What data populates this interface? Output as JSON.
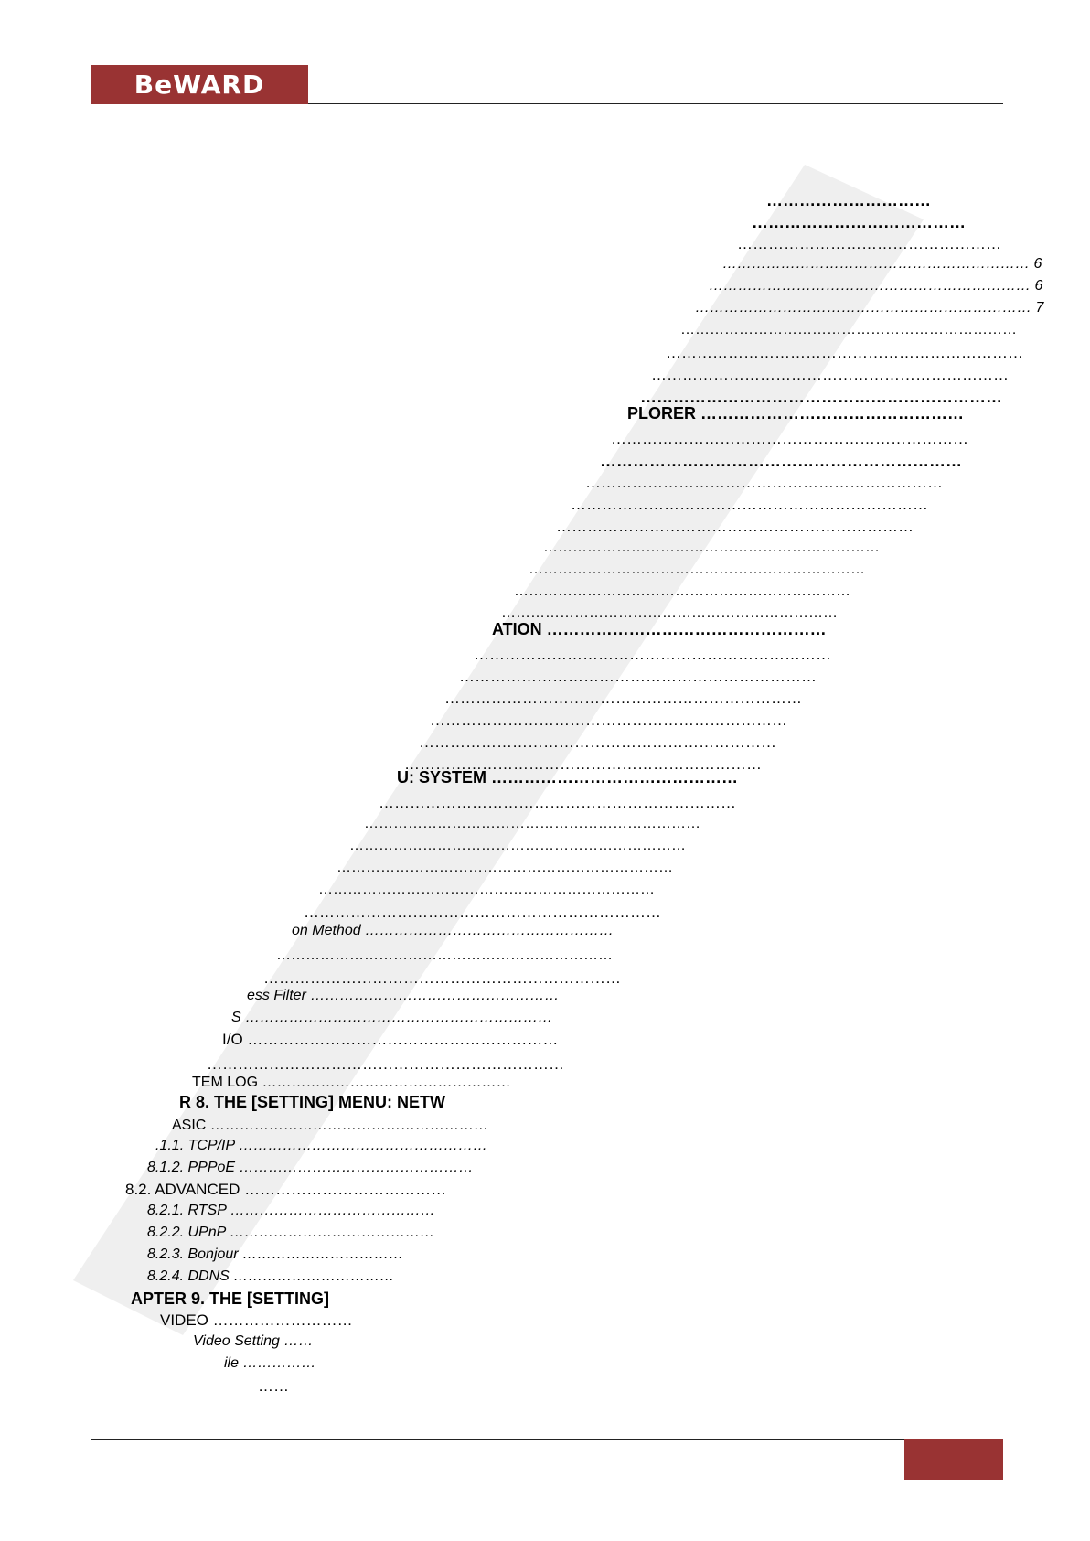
{
  "header": {
    "logo": "BeWARD"
  },
  "toc": [
    {
      "text": "…………………………",
      "page": ""
    },
    {
      "text": "…………………………………",
      "page": ""
    },
    {
      "text": "……………………………………………",
      "page": ""
    },
    {
      "text": "………………………………………………………",
      "page": "6"
    },
    {
      "text": "…………………………………………………………",
      "page": "6"
    },
    {
      "text": "……………………………………………………………",
      "page": "7"
    },
    {
      "text": "……………………………………………………………",
      "page": ""
    },
    {
      "text": "……………………………………………………………",
      "page": ""
    },
    {
      "text": "……………………………………………………………",
      "page": ""
    },
    {
      "text": "…………………………………………………………",
      "page": ""
    },
    {
      "text": "PLORER …………………………………………",
      "page": ""
    },
    {
      "text": "……………………………………………………………",
      "page": ""
    },
    {
      "text": "…………………………………………………………",
      "page": ""
    },
    {
      "text": "……………………………………………………………",
      "page": ""
    },
    {
      "text": "……………………………………………………………",
      "page": ""
    },
    {
      "text": "……………………………………………………………",
      "page": ""
    },
    {
      "text": "……………………………………………………………",
      "page": ""
    },
    {
      "text": "……………………………………………………………",
      "page": ""
    },
    {
      "text": "……………………………………………………………",
      "page": ""
    },
    {
      "text": "……………………………………………………………",
      "page": ""
    },
    {
      "text": "ATION ……………………………………………",
      "page": ""
    },
    {
      "text": "……………………………………………………………",
      "page": ""
    },
    {
      "text": "……………………………………………………………",
      "page": ""
    },
    {
      "text": "……………………………………………………………",
      "page": ""
    },
    {
      "text": "……………………………………………………………",
      "page": ""
    },
    {
      "text": "……………………………………………………………",
      "page": ""
    },
    {
      "text": "……………………………………………………………",
      "page": ""
    },
    {
      "text": "U: SYSTEM ………………………………………",
      "page": ""
    },
    {
      "text": "……………………………………………………………",
      "page": ""
    },
    {
      "text": "……………………………………………………………",
      "page": ""
    },
    {
      "text": "……………………………………………………………",
      "page": ""
    },
    {
      "text": "……………………………………………………………",
      "page": ""
    },
    {
      "text": "……………………………………………………………",
      "page": ""
    },
    {
      "text": "……………………………………………………………",
      "page": ""
    },
    {
      "text": "on Method ……………………………………………",
      "page": ""
    },
    {
      "text": "……………………………………………………………",
      "page": ""
    },
    {
      "text": "……………………………………………………………",
      "page": ""
    },
    {
      "text": "ess Filter ……………………………………………",
      "page": ""
    },
    {
      "text": "S ………………………………………………………",
      "page": ""
    },
    {
      "text": "I/O ……………………………………………………",
      "page": ""
    },
    {
      "text": "……………………………………………………………",
      "page": ""
    },
    {
      "text": "TEM LOG ……………………………………………",
      "page": ""
    },
    {
      "text": "R 8. THE [SETTING] MENU: NETW",
      "page": ""
    },
    {
      "text": "ASIC …………………………………………………",
      "page": ""
    },
    {
      "text": ".1.1. TCP/IP ……………………………………………",
      "page": ""
    },
    {
      "text": "8.1.2. PPPoE …………………………………………",
      "page": ""
    },
    {
      "text": "8.2. ADVANCED …………………………………",
      "page": ""
    },
    {
      "text": "8.2.1. RTSP ……………………………………",
      "page": ""
    },
    {
      "text": "8.2.2. UPnP ……………………………………",
      "page": ""
    },
    {
      "text": "8.2.3. Bonjour ……………………………",
      "page": ""
    },
    {
      "text": "8.2.4. DDNS ……………………………",
      "page": ""
    },
    {
      "text": "APTER 9. THE [SETTING]",
      "page": ""
    },
    {
      "text": "VIDEO ………………………",
      "page": ""
    },
    {
      "text": "Video Setting ……",
      "page": ""
    },
    {
      "text": "ile ……………",
      "page": ""
    },
    {
      "text": "……",
      "page": ""
    }
  ],
  "colors": {
    "brand": "#993333",
    "watermark": "#eeeeee"
  }
}
